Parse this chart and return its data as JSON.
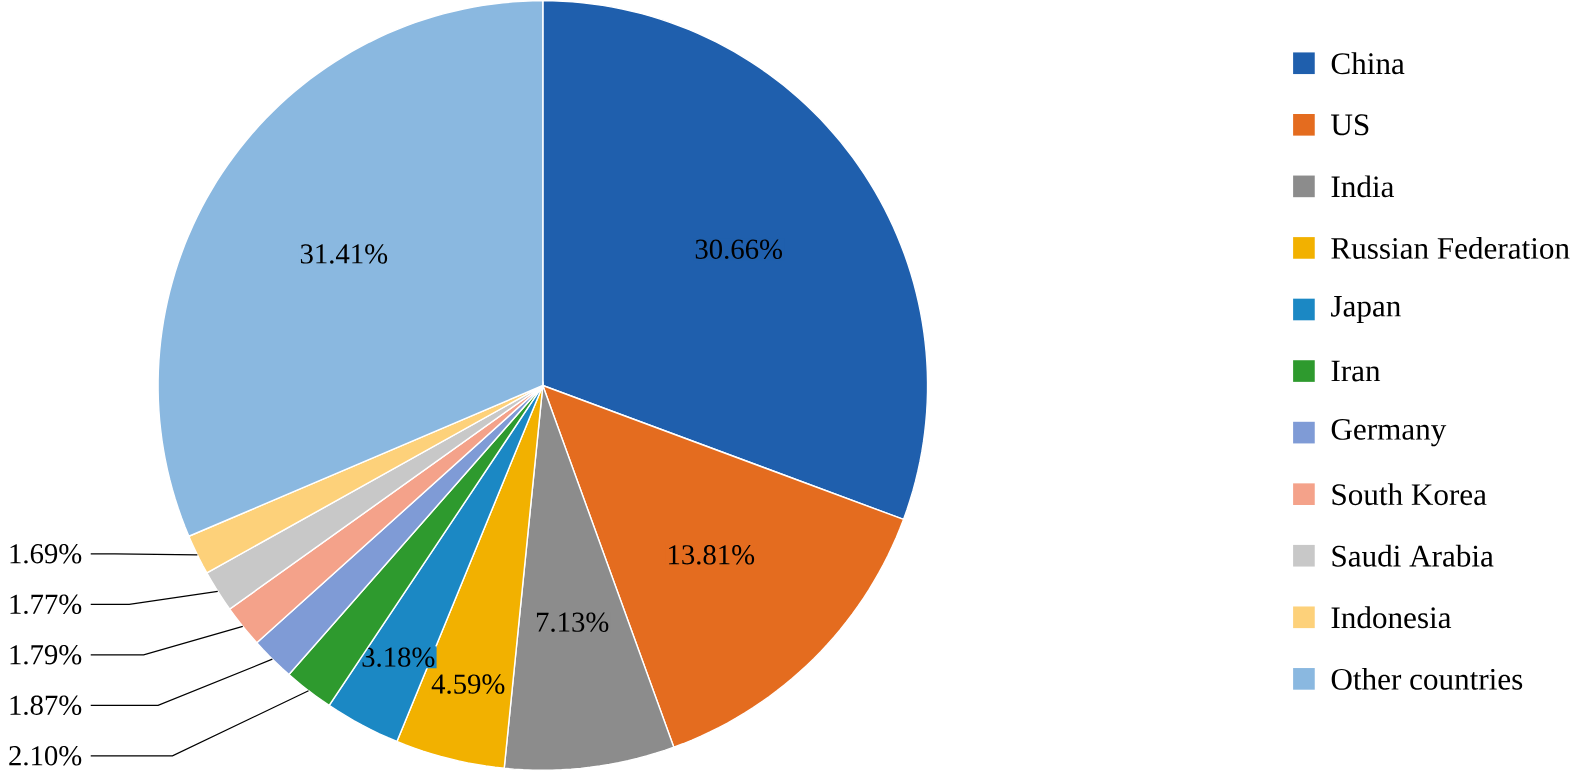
{
  "chart_data": {
    "type": "pie",
    "categories": [
      "China",
      "US",
      "India",
      "Russian Federation",
      "Japan",
      "Iran",
      "Germany",
      "South Korea",
      "Saudi Arabia",
      "Indonesia",
      "Other countries"
    ],
    "values": [
      30.66,
      13.81,
      7.13,
      4.59,
      3.18,
      2.1,
      1.87,
      1.79,
      1.77,
      1.69,
      31.41
    ],
    "value_labels": [
      "30.66%",
      "13.81%",
      "7.13%",
      "4.59%",
      "3.18%",
      "2.10%",
      "1.87%",
      "1.79%",
      "1.77%",
      "1.69%",
      "31.41%"
    ],
    "colors": [
      "#1f5fad",
      "#e46c1f",
      "#8c8c8c",
      "#f2b100",
      "#1b88c4",
      "#2e9a2e",
      "#7f9bd6",
      "#f4a28a",
      "#c8c8c8",
      "#fdd17a",
      "#8ab8e0"
    ],
    "legend": "right"
  }
}
